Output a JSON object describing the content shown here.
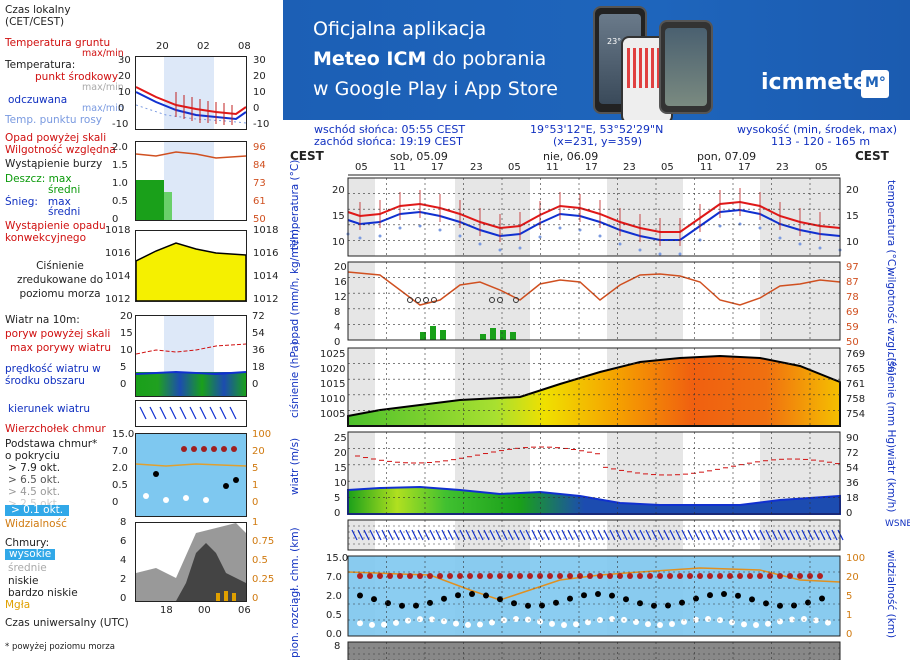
{
  "legend": {
    "time_zone": "Czas lokalny\n(CET/CEST)",
    "top_hours": [
      "20",
      "02",
      "08"
    ],
    "temp_ground": "Temperatura gruntu",
    "temp_ground_minmax": "max/min",
    "temperature": "Temperatura:",
    "mid_point": "punkt środkowy",
    "mid_minmax": "max/min",
    "felt": "odczuwana",
    "felt_minmax": "max/min",
    "dew": "Temp. punktu rosy",
    "precip_above": "Opad powyżej skali",
    "humidity": "Wilgotność względna",
    "storm": "Wystąpienie burzy",
    "rain_max": "Deszcz: max",
    "rain_avg": "średni",
    "snow_max": "Śnieg:   max",
    "snow_avg": "średni",
    "convective": "Wystąpienie opadu konwekcyjnego",
    "pressure_label": "Ciśnienie zredukowane do poziomu morza",
    "wind_label": "Wiatr na 10m:",
    "gust_above": "poryw powyżej skali",
    "gust_max": "max porywy wiatru",
    "wind_speed": "prędkość wiatru w środku obszaru",
    "wind_dir": "kierunek wiatru",
    "cloud_top": "Wierzchołek chmur",
    "cloud_base": "Podstawa chmur* o pokryciu",
    "okt": [
      "> 7.9 okt.",
      "> 6.5 okt.",
      "> 4.5 okt.",
      "> 2.5 okt.",
      "> 0.1 okt."
    ],
    "visibility": "Widzialność",
    "clouds": "Chmury:",
    "high": "wysokie",
    "mid": "średnie",
    "low": "niskie",
    "vlow": "bardzo niskie",
    "fog": "Mgła",
    "utc": "Czas uniwersalny (UTC)",
    "footnote": "* powyżej poziomu morza",
    "bottom_hours": [
      "18",
      "00",
      "06"
    ],
    "temp_ticks": [
      "30",
      "20",
      "10",
      "0",
      "-10"
    ],
    "prec_ticks": [
      "2.0",
      "1.5",
      "1.0",
      "0.5",
      "0"
    ],
    "hum_ticks": [
      "96",
      "84",
      "73",
      "61",
      "50"
    ],
    "pres_ticks": [
      "1018",
      "1016",
      "1014",
      "1012"
    ],
    "wind_ticks_l": [
      "20",
      "15",
      "10",
      "5",
      "0"
    ],
    "wind_ticks_r": [
      "72",
      "54",
      "36",
      "18",
      "0"
    ],
    "cb_ticks_l": [
      "15.0",
      "7.0",
      "2.0",
      "0.5",
      "0"
    ],
    "cb_ticks_r": [
      "100",
      "20",
      "5",
      "1",
      "0"
    ],
    "cl_ticks_l": [
      "8",
      "6",
      "4",
      "2",
      "0"
    ],
    "cl_ticks_r": [
      "1",
      "0.75",
      "0.5",
      "0.25",
      "0"
    ]
  },
  "banner": {
    "line1": "Oficjalna aplikacja",
    "line2_bold": "Meteo ICM",
    "line2_rest": " do pobrania",
    "line3": "w Google Play i App Store",
    "logo": "icmmeteo",
    "logo_badge": "M°",
    "phone_temp": "23°"
  },
  "info": {
    "sunrise": "wschód słońca: 05:55 CEST",
    "sunset": "zachód słońca: 19:19 CEST",
    "coords": "19°53'12\"E, 53°52'29\"N",
    "grid": "(x=231,  y=359)",
    "elev_label": "wysokość (min, środek, max)",
    "elev": "113 - 120 - 165 m"
  },
  "chart": {
    "tz": "CEST",
    "days": [
      "sob, 05.09",
      "nie, 06.09",
      "pon, 07.09"
    ],
    "hours": [
      "05",
      "11",
      "17",
      "23",
      "05",
      "11",
      "17",
      "23",
      "05",
      "11",
      "17",
      "23",
      "05"
    ],
    "temp_label": "temperatura (°C)",
    "temp_ticks": [
      "20",
      "15",
      "10"
    ],
    "prec_label": "opad (mm/h, kg/m²/h)",
    "prec_ticks": [
      "20",
      "16",
      "12",
      "8",
      "4",
      "0"
    ],
    "hum_label": "wilgotność wzgl. (%)",
    "hum_ticks": [
      "97",
      "87",
      "78",
      "69",
      "59",
      "50"
    ],
    "pres_label": "ciśnienie (hPa)",
    "pres_ticks": [
      "1025",
      "1020",
      "1015",
      "1010",
      "1005"
    ],
    "pres_label_r": "ciśnienie (mm Hg)",
    "pres_ticks_r": [
      "769",
      "765",
      "761",
      "758",
      "754"
    ],
    "wind_label": "wiatr (m/s)",
    "wind_ticks": [
      "25",
      "20",
      "15",
      "10",
      "5",
      "0"
    ],
    "wind_label_r": "wiatr (km/h)",
    "wind_ticks_r": [
      "90",
      "72",
      "54",
      "36",
      "18",
      "0"
    ],
    "dir_label": "WSNE",
    "cb_label": "pion. rozciągł. chm. (km)",
    "cb_ticks": [
      "15.0",
      "7.0",
      "2.0",
      "0.5",
      "0.0"
    ],
    "vis_label": "widzialność (km)",
    "vis_ticks": [
      "100",
      "20",
      "5",
      "1",
      "0"
    ],
    "cl_ticks": [
      "8"
    ]
  },
  "colors": {
    "banner": "#1f63b8",
    "temp_red": "#e01818",
    "temp_blue": "#1030d0",
    "pressure_fill": "#f5f000",
    "precip_green": "#1aa01a",
    "humidity": "#d05020"
  }
}
